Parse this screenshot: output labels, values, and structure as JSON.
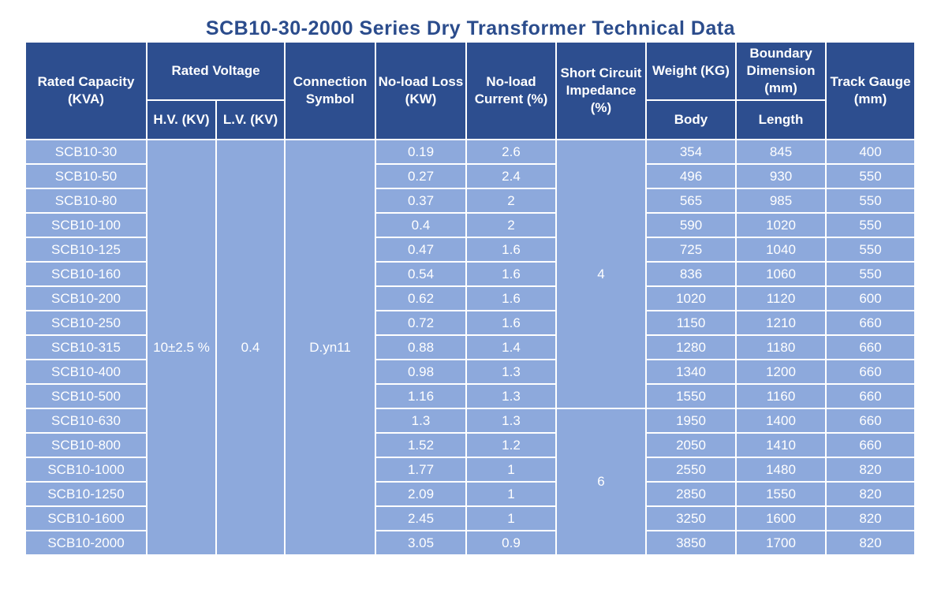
{
  "title": "SCB10-30-2000 Series Dry Transformer Technical Data",
  "headers": {
    "rated_capacity": "Rated Capacity (KVA)",
    "rated_voltage": "Rated Voltage",
    "hv": "H.V. (KV)",
    "lv": "L.V. (KV)",
    "connection_symbol": "Connection Symbol",
    "noload_loss": "No-load Loss (KW)",
    "noload_current": "No-load Current (%)",
    "short_circuit": "Short Circuit Impedance (%)",
    "weight": "Weight (KG)",
    "body": "Body",
    "boundary": "Boundary Dimension (mm)",
    "length": "Length",
    "track_gauge": "Track Gauge (mm)"
  },
  "merged": {
    "hv_value": "10±2.5 %",
    "lv_value": "0.4",
    "connection_value": "D.yn11",
    "impedance_a": "4",
    "impedance_b": "6"
  },
  "rows": [
    {
      "model": "SCB10-30",
      "loss": "0.19",
      "current": "2.6",
      "weight": "354",
      "length": "845",
      "gauge": "400"
    },
    {
      "model": "SCB10-50",
      "loss": "0.27",
      "current": "2.4",
      "weight": "496",
      "length": "930",
      "gauge": "550"
    },
    {
      "model": "SCB10-80",
      "loss": "0.37",
      "current": "2",
      "weight": "565",
      "length": "985",
      "gauge": "550"
    },
    {
      "model": "SCB10-100",
      "loss": "0.4",
      "current": "2",
      "weight": "590",
      "length": "1020",
      "gauge": "550"
    },
    {
      "model": "SCB10-125",
      "loss": "0.47",
      "current": "1.6",
      "weight": "725",
      "length": "1040",
      "gauge": "550"
    },
    {
      "model": "SCB10-160",
      "loss": "0.54",
      "current": "1.6",
      "weight": "836",
      "length": "1060",
      "gauge": "550"
    },
    {
      "model": "SCB10-200",
      "loss": "0.62",
      "current": "1.6",
      "weight": "1020",
      "length": "1120",
      "gauge": "600"
    },
    {
      "model": "SCB10-250",
      "loss": "0.72",
      "current": "1.6",
      "weight": "1150",
      "length": "1210",
      "gauge": "660"
    },
    {
      "model": "SCB10-315",
      "loss": "0.88",
      "current": "1.4",
      "weight": "1280",
      "length": "1180",
      "gauge": "660"
    },
    {
      "model": "SCB10-400",
      "loss": "0.98",
      "current": "1.3",
      "weight": "1340",
      "length": "1200",
      "gauge": "660"
    },
    {
      "model": "SCB10-500",
      "loss": "1.16",
      "current": "1.3",
      "weight": "1550",
      "length": "1160",
      "gauge": "660"
    },
    {
      "model": "SCB10-630",
      "loss": "1.3",
      "current": "1.3",
      "weight": "1950",
      "length": "1400",
      "gauge": "660"
    },
    {
      "model": "SCB10-800",
      "loss": "1.52",
      "current": "1.2",
      "weight": "2050",
      "length": "1410",
      "gauge": "660"
    },
    {
      "model": "SCB10-1000",
      "loss": "1.77",
      "current": "1",
      "weight": "2550",
      "length": "1480",
      "gauge": "820"
    },
    {
      "model": "SCB10-1250",
      "loss": "2.09",
      "current": "1",
      "weight": "2850",
      "length": "1550",
      "gauge": "820"
    },
    {
      "model": "SCB10-1600",
      "loss": "2.45",
      "current": "1",
      "weight": "3250",
      "length": "1600",
      "gauge": "820"
    },
    {
      "model": "SCB10-2000",
      "loss": "3.05",
      "current": "0.9",
      "weight": "3850",
      "length": "1700",
      "gauge": "820"
    }
  ]
}
